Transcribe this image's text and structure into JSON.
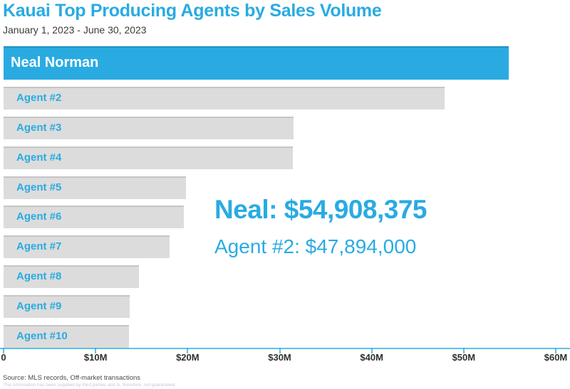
{
  "header": {
    "title": "Kauai Top Producing Agents by Sales Volume",
    "subtitle": "January 1, 2023 - June 30, 2023"
  },
  "chart_data": {
    "type": "bar",
    "orientation": "horizontal",
    "title": "Kauai Top Producing Agents by Sales Volume",
    "subtitle": "January 1, 2023 - June 30, 2023",
    "categories": [
      "Neal Norman",
      "Agent #2",
      "Agent #3",
      "Agent #4",
      "Agent #5",
      "Agent #6",
      "Agent #7",
      "Agent #8",
      "Agent #9",
      "Agent #10"
    ],
    "values": [
      54908375,
      47894000,
      31500000,
      31400000,
      19800000,
      19600000,
      18000000,
      14700000,
      13700000,
      13600000
    ],
    "xlim": [
      0,
      60000000
    ],
    "x_ticks": [
      {
        "label": "0",
        "value": 0
      },
      {
        "label": "$10M",
        "value": 10000000
      },
      {
        "label": "$20M",
        "value": 20000000
      },
      {
        "label": "$30M",
        "value": 30000000
      },
      {
        "label": "$40M",
        "value": 40000000
      },
      {
        "label": "$50M",
        "value": 50000000
      },
      {
        "label": "$60M",
        "value": 60000000
      }
    ],
    "grid": false,
    "legend": false,
    "highlight_index": 0,
    "annotations": [
      "Neal: $54,908,375",
      "Agent #2: $47,894,000"
    ]
  },
  "annotation": {
    "primary": "Neal: $54,908,375",
    "secondary": "Agent #2: $47,894,000"
  },
  "footer": {
    "source": "Source: MLS records, Off-market transactions",
    "disclaimer": "This information has been supplied by third parties and is, therefore, not guaranteed."
  },
  "colors": {
    "accent": "#29ABE2",
    "bar_gray": "#DCDCDC",
    "text_dark": "#3C3C3C"
  }
}
